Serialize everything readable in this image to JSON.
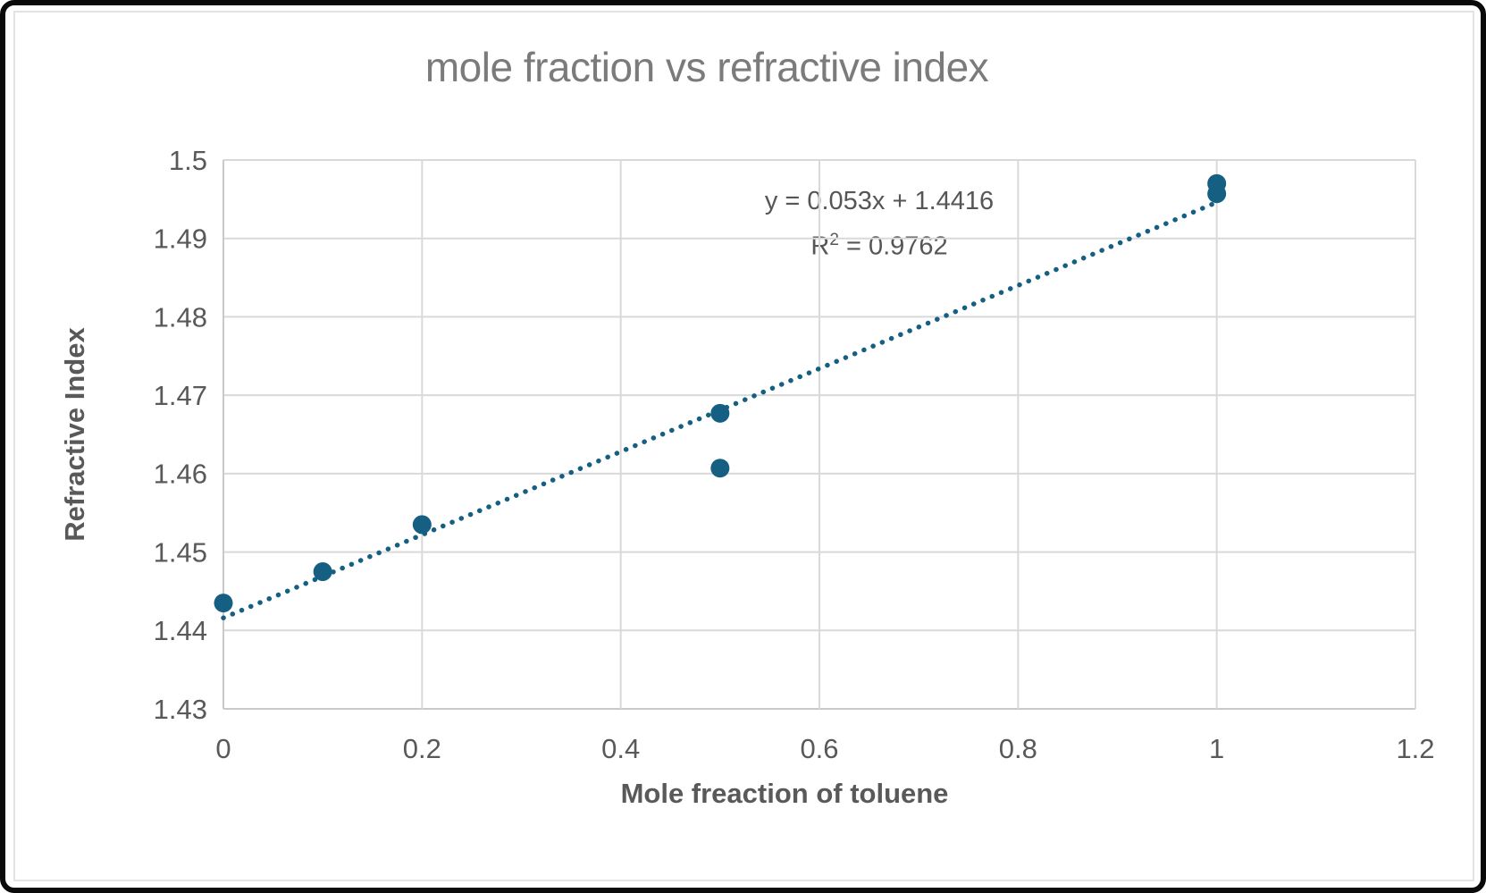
{
  "title": {
    "text": "mole fraction vs refractive index",
    "color": "#7b7b7b"
  },
  "equation": {
    "line1": "y = 0.053x + 1.4416",
    "r2_base": "R",
    "r2_sup": "2",
    "r2_rest": " = 0.9762",
    "color": "#565656"
  },
  "x_axis": {
    "title": "Mole freaction of toluene",
    "tick_labels": [
      "0",
      "0.2",
      "0.4",
      "0.6",
      "0.8",
      "1",
      "1.2"
    ],
    "color": "#595959"
  },
  "y_axis": {
    "title": "Refractive Index",
    "tick_labels": [
      "1.43",
      "1.44",
      "1.45",
      "1.46",
      "1.47",
      "1.48",
      "1.49",
      "1.5"
    ],
    "color": "#595959"
  },
  "colors": {
    "accent": "#156082",
    "gridline": "#d9d9d9",
    "axis_line": "#c9c9c9",
    "frame_border": "#e3e3e3",
    "outer_border": "#0a0a0a",
    "background": "#ffffff"
  },
  "chart_data": {
    "type": "scatter",
    "title": "mole fraction vs refractive index",
    "xlabel": "Mole freaction of toluene",
    "ylabel": "Refractive Index",
    "xlim": [
      0,
      1.2
    ],
    "ylim": [
      1.43,
      1.5
    ],
    "x_ticks": [
      0,
      0.2,
      0.4,
      0.6,
      0.8,
      1,
      1.2
    ],
    "y_ticks": [
      1.43,
      1.44,
      1.45,
      1.46,
      1.47,
      1.48,
      1.49,
      1.5
    ],
    "grid": true,
    "legend": "none",
    "points": [
      {
        "x": 0,
        "y": 1.4435
      },
      {
        "x": 0.1,
        "y": 1.4475
      },
      {
        "x": 0.2,
        "y": 1.4535
      },
      {
        "x": 0.5,
        "y": 1.4607
      },
      {
        "x": 0.5,
        "y": 1.4677
      },
      {
        "x": 1,
        "y": 1.4957
      },
      {
        "x": 1,
        "y": 1.497
      }
    ],
    "trendline": {
      "type": "linear",
      "slope": 0.053,
      "intercept": 1.4416,
      "x_range": [
        0,
        1
      ],
      "equation": "y = 0.053x + 1.4416",
      "r_squared": 0.9762,
      "style": "dotted"
    }
  }
}
